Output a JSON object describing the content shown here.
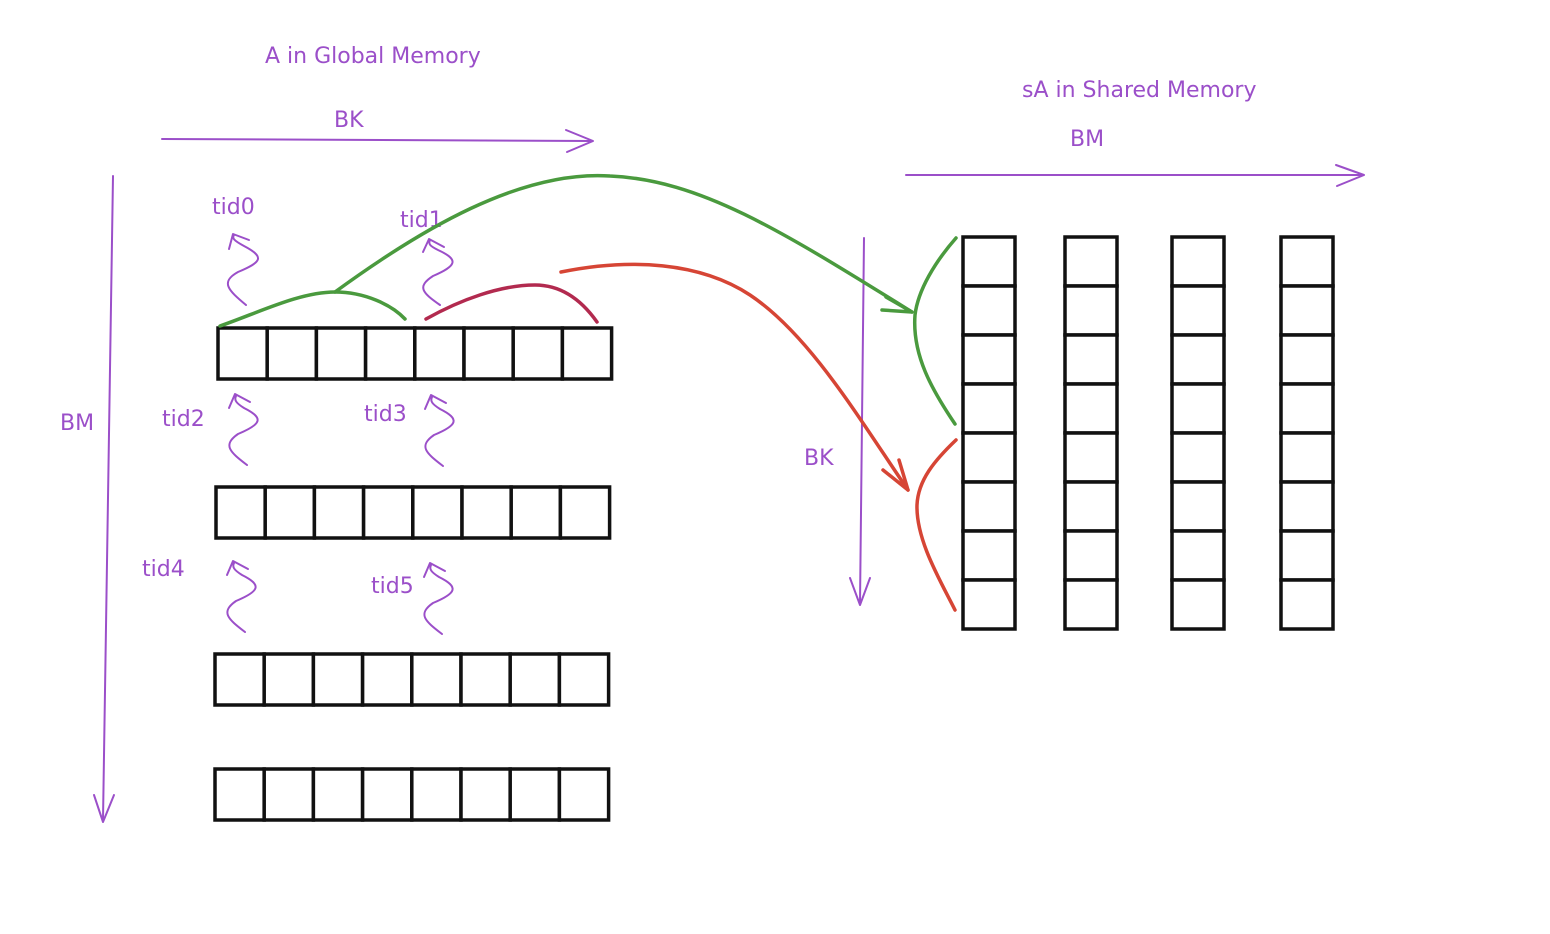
{
  "global": {
    "title": "A in Global Memory",
    "horizontal_label": "BK",
    "vertical_label": "BM",
    "rows": 4,
    "cols": 8
  },
  "shared": {
    "title": "sA in Shared Memory",
    "horizontal_label": "BM",
    "vertical_label": "BK",
    "columns": 4,
    "rows": 8
  },
  "threads": [
    "tid0",
    "tid1",
    "tid2",
    "tid3",
    "tid4",
    "tid5"
  ],
  "colors": {
    "annotation": "#9b4fc9",
    "tid0_mapping": "#4a9a3e",
    "tid1_mapping": "#d64535",
    "tid1_segment": "#b22a4f",
    "cell_border": "#111111"
  }
}
